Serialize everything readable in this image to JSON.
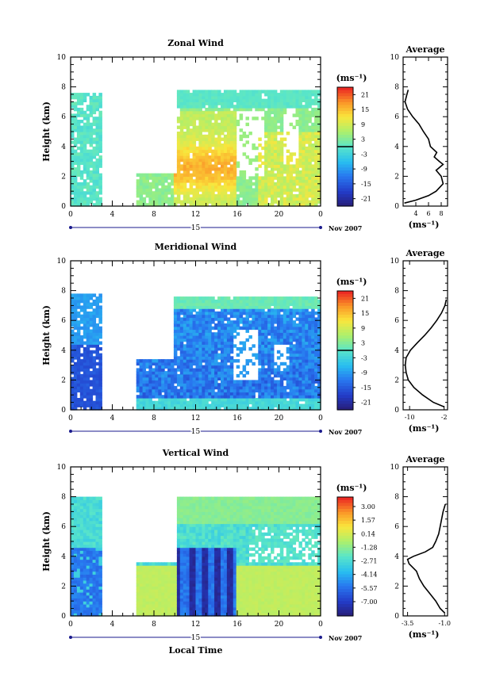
{
  "figure": {
    "x_axis_label": "Local Time",
    "date_label": "Nov 2007",
    "day_label": "15"
  },
  "chart_data": [
    {
      "type": "heatmap",
      "title": "Zonal Wind",
      "ylabel": "Height (km)",
      "xlabel": "Local Time",
      "xlim": [
        0,
        24
      ],
      "ylim": [
        0,
        10
      ],
      "x_tick_labels": [
        "0",
        "4",
        "8",
        "12",
        "16",
        "20",
        "0"
      ],
      "y_tick_labels": [
        "0",
        "2",
        "4",
        "6",
        "8",
        "10"
      ],
      "colorbar": {
        "unit": "(ms⁻¹)",
        "range": [
          -24,
          24
        ],
        "tick_labels": [
          "21",
          "15",
          "9",
          "3",
          "-3",
          "-9",
          "-15",
          "-21"
        ],
        "tick_values": [
          21,
          15,
          9,
          3,
          -3,
          -9,
          -15,
          -21
        ],
        "zero_line": 0
      },
      "average_profile": {
        "title": "Average",
        "xlim": [
          2,
          9
        ],
        "x_ticks": [
          4,
          6,
          8
        ],
        "x_tick_labels": [
          "4",
          "6",
          "8"
        ],
        "xlabel": "(ms⁻¹)",
        "points": [
          [
            2.2,
            0.2
          ],
          [
            4.0,
            0.4
          ],
          [
            6.0,
            0.7
          ],
          [
            7.2,
            1.0
          ],
          [
            8.3,
            1.5
          ],
          [
            8.0,
            2.0
          ],
          [
            7.2,
            2.4
          ],
          [
            8.3,
            2.8
          ],
          [
            7.7,
            3.0
          ],
          [
            6.9,
            3.3
          ],
          [
            7.3,
            3.6
          ],
          [
            6.3,
            4.0
          ],
          [
            6.0,
            4.5
          ],
          [
            5.2,
            5.0
          ],
          [
            4.5,
            5.5
          ],
          [
            3.5,
            6.0
          ],
          [
            2.7,
            6.5
          ],
          [
            2.3,
            7.0
          ],
          [
            2.6,
            7.5
          ],
          [
            2.8,
            7.8
          ]
        ]
      }
    },
    {
      "type": "heatmap",
      "title": "Meridional Wind",
      "ylabel": "Height (km)",
      "xlabel": "Local Time",
      "xlim": [
        0,
        24
      ],
      "ylim": [
        0,
        10
      ],
      "x_tick_labels": [
        "0",
        "4",
        "8",
        "12",
        "16",
        "20",
        "0"
      ],
      "y_tick_labels": [
        "0",
        "2",
        "4",
        "6",
        "8",
        "10"
      ],
      "colorbar": {
        "unit": "(ms⁻¹)",
        "range": [
          -24,
          24
        ],
        "tick_labels": [
          "21",
          "15",
          "9",
          "3",
          "-3",
          "-9",
          "-15",
          "-21"
        ],
        "tick_values": [
          21,
          15,
          9,
          3,
          -3,
          -9,
          -15,
          -21
        ],
        "zero_line": 0
      },
      "average_profile": {
        "title": "Average",
        "xlim": [
          -11.5,
          -1.2
        ],
        "x_ticks": [
          -10,
          -2
        ],
        "x_tick_labels": [
          "-10",
          "-2"
        ],
        "xlabel": "(ms⁻¹)",
        "points": [
          [
            -2.0,
            0.2
          ],
          [
            -4.5,
            0.5
          ],
          [
            -7.0,
            1.0
          ],
          [
            -9.0,
            1.5
          ],
          [
            -10.3,
            2.0
          ],
          [
            -10.8,
            2.5
          ],
          [
            -11.0,
            3.0
          ],
          [
            -10.8,
            3.5
          ],
          [
            -9.8,
            4.0
          ],
          [
            -8.2,
            4.5
          ],
          [
            -6.5,
            5.0
          ],
          [
            -5.0,
            5.5
          ],
          [
            -3.7,
            6.0
          ],
          [
            -2.6,
            6.5
          ],
          [
            -1.8,
            7.0
          ],
          [
            -1.5,
            7.4
          ]
        ]
      }
    },
    {
      "type": "heatmap",
      "title": "Vertical Wind",
      "ylabel": "Height (km)",
      "xlabel": "Local Time",
      "xlim": [
        0,
        24
      ],
      "ylim": [
        0,
        10
      ],
      "x_tick_labels": [
        "0",
        "4",
        "8",
        "12",
        "16",
        "20",
        "0"
      ],
      "y_tick_labels": [
        "0",
        "2",
        "4",
        "6",
        "8",
        "10"
      ],
      "colorbar": {
        "unit": "(ms⁻¹)",
        "range": [
          -8.5,
          4.0
        ],
        "tick_labels": [
          "3.00",
          "1.57",
          "0.14",
          "-1.28",
          "-2.71",
          "-4.14",
          "-5.57",
          "-7.00"
        ],
        "tick_values": [
          3.0,
          1.57,
          0.14,
          -1.28,
          -2.71,
          -4.14,
          -5.57,
          -7.0
        ]
      },
      "average_profile": {
        "title": "Average",
        "xlim": [
          -3.8,
          -0.8
        ],
        "x_ticks": [
          -3.5,
          -1.0
        ],
        "x_tick_labels": [
          "-3.5",
          "-1.0"
        ],
        "xlabel": "(ms⁻¹)",
        "points": [
          [
            -1.0,
            0.2
          ],
          [
            -1.3,
            0.5
          ],
          [
            -1.6,
            1.0
          ],
          [
            -2.0,
            1.5
          ],
          [
            -2.4,
            2.0
          ],
          [
            -2.7,
            2.5
          ],
          [
            -2.9,
            3.0
          ],
          [
            -3.4,
            3.5
          ],
          [
            -3.5,
            3.8
          ],
          [
            -3.1,
            4.0
          ],
          [
            -2.3,
            4.3
          ],
          [
            -1.8,
            4.6
          ],
          [
            -1.6,
            5.0
          ],
          [
            -1.4,
            5.5
          ],
          [
            -1.3,
            6.0
          ],
          [
            -1.1,
            7.0
          ],
          [
            -0.95,
            7.5
          ]
        ]
      }
    }
  ]
}
